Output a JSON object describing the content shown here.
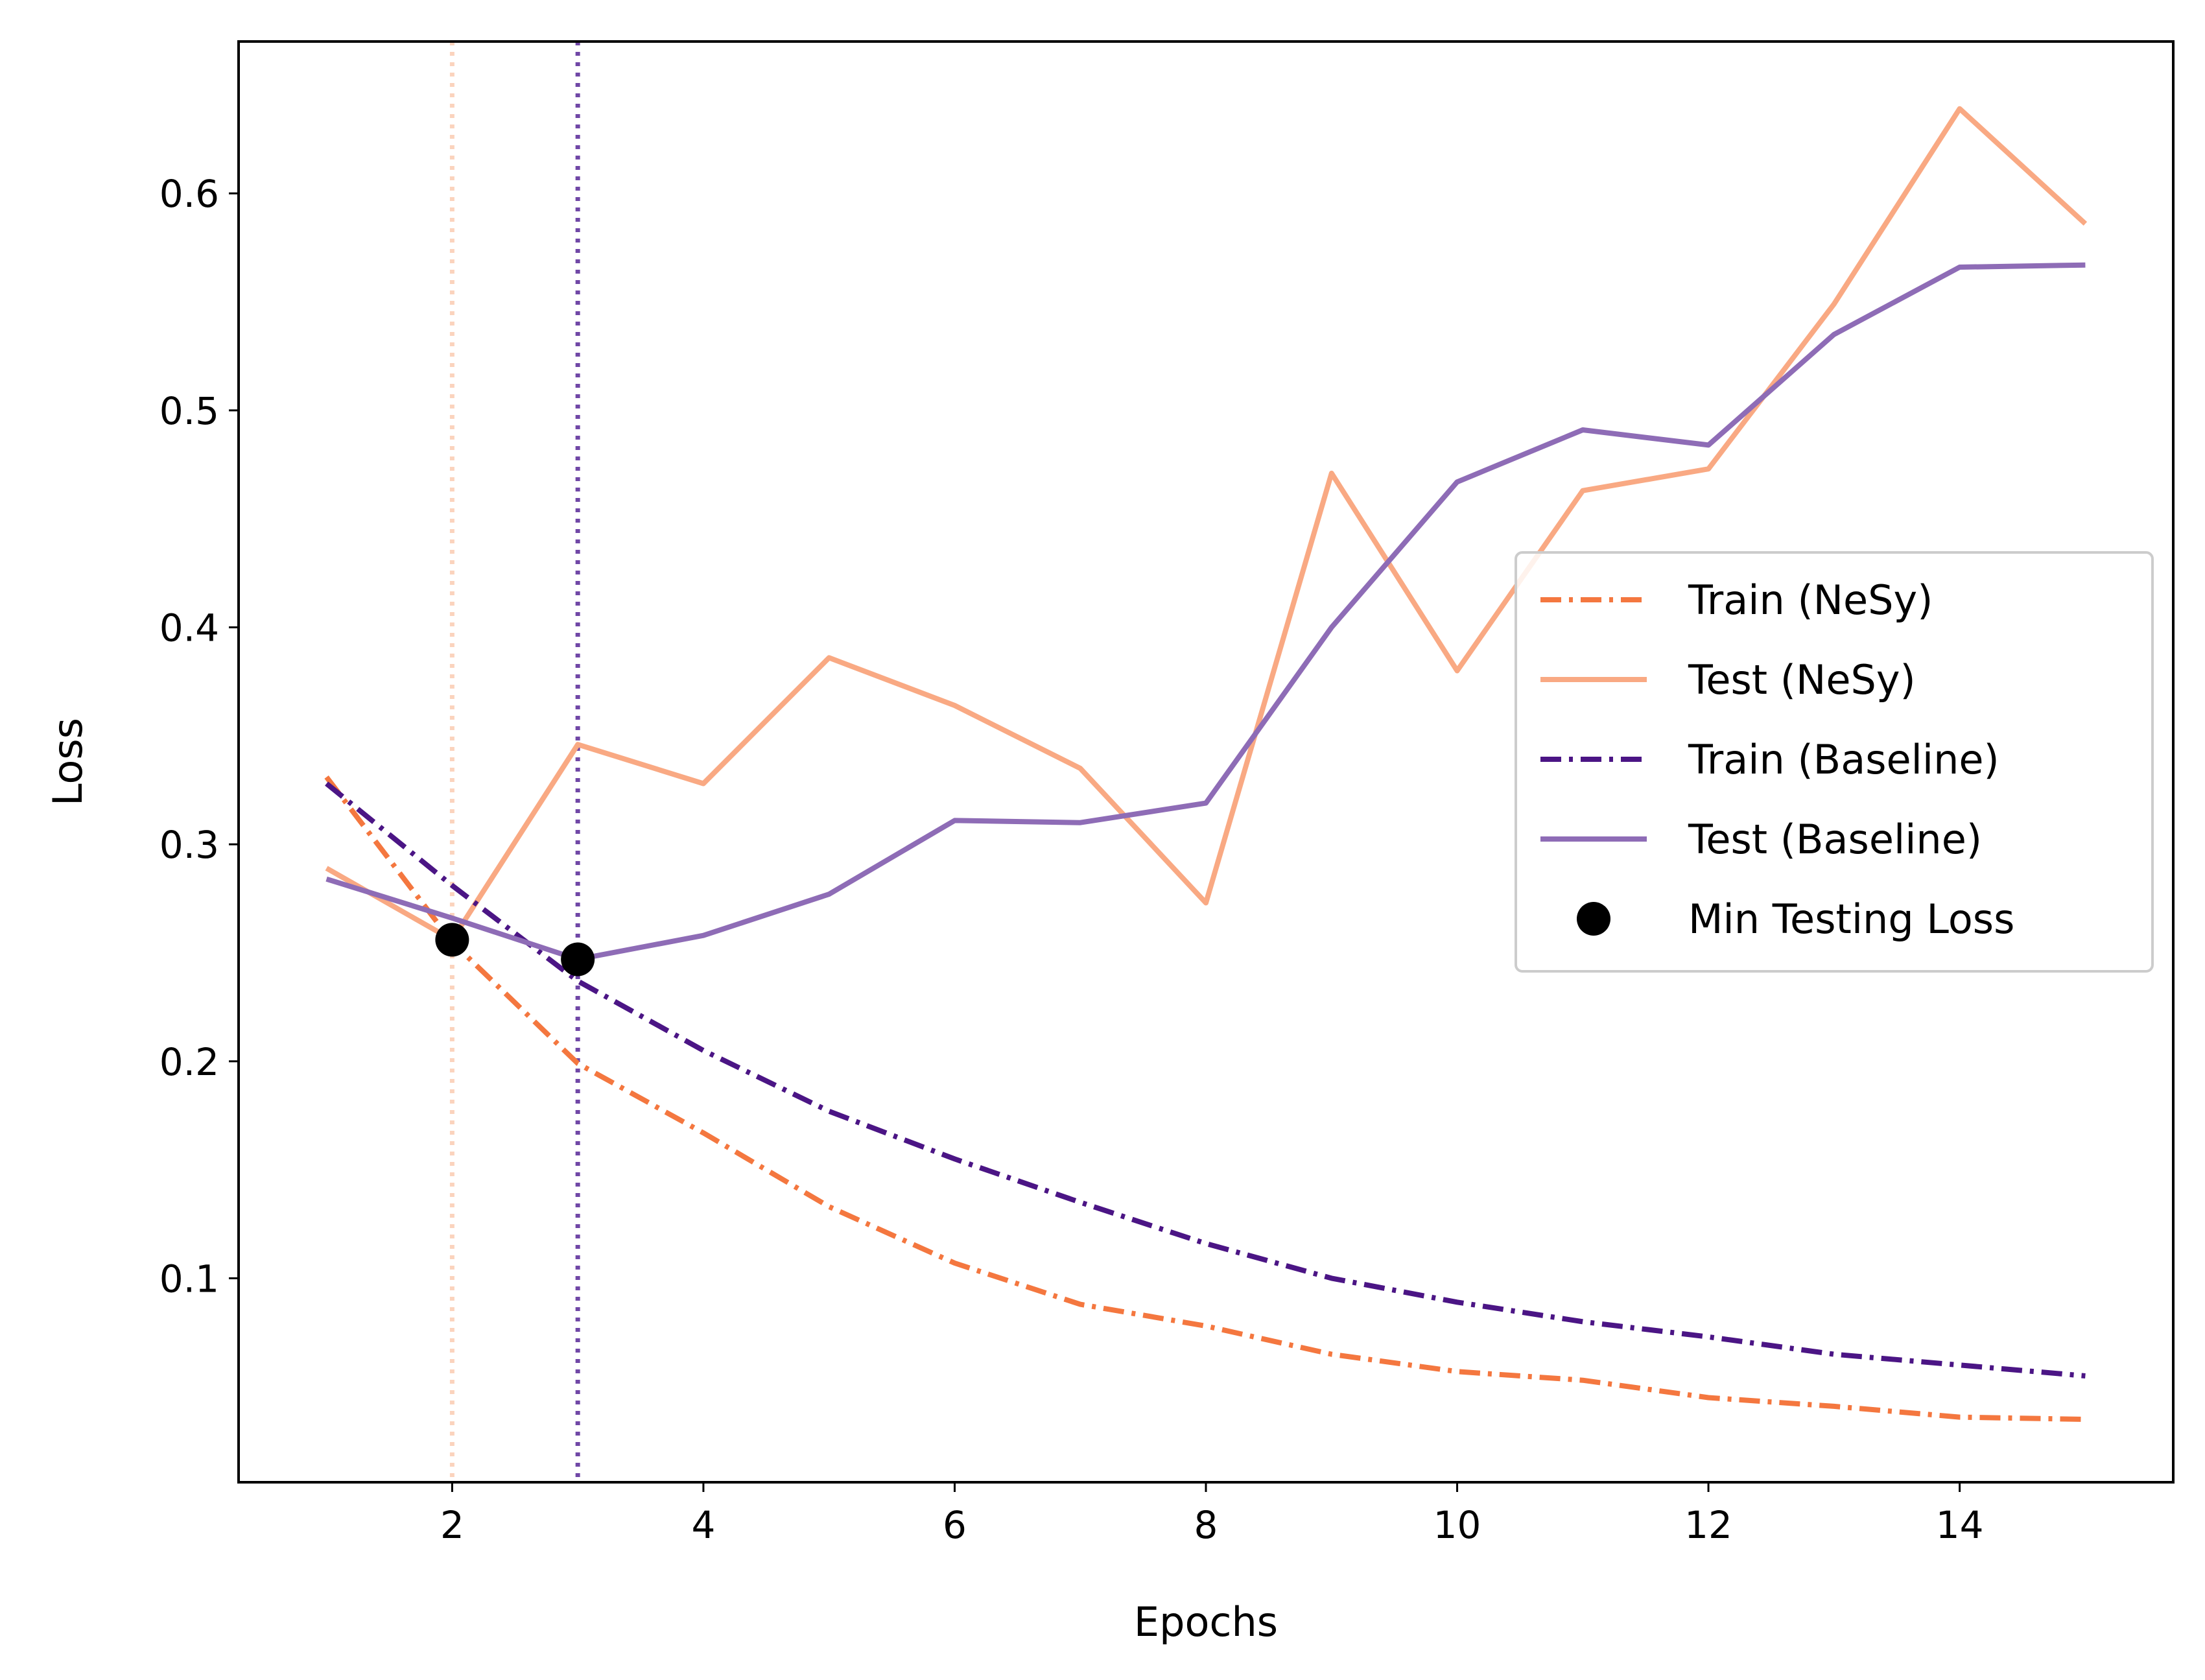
{
  "chart_data": {
    "type": "line",
    "xlabel": "Epochs",
    "ylabel": "Loss",
    "xlim": [
      0.3,
      15.7
    ],
    "ylim": [
      0.006,
      0.67
    ],
    "xticks": [
      2,
      4,
      6,
      8,
      10,
      12,
      14
    ],
    "yticks": [
      0.1,
      0.2,
      0.3,
      0.4,
      0.5,
      0.6
    ],
    "grid": false,
    "legend_position": "center-right",
    "x": [
      1,
      2,
      3,
      4,
      5,
      6,
      7,
      8,
      9,
      10,
      11,
      12,
      13,
      14,
      15
    ],
    "series": [
      {
        "name": "Train (NeSy)",
        "style": "dashdot",
        "color": "#f4773f",
        "values": [
          0.331,
          0.255,
          0.199,
          0.167,
          0.133,
          0.107,
          0.088,
          0.078,
          0.065,
          0.057,
          0.053,
          0.045,
          0.041,
          0.036,
          0.035
        ]
      },
      {
        "name": "Test (NeSy)",
        "style": "solid",
        "color": "#f9a983",
        "values": [
          0.289,
          0.256,
          0.346,
          0.328,
          0.386,
          0.364,
          0.335,
          0.273,
          0.471,
          0.38,
          0.463,
          0.473,
          0.549,
          0.639,
          0.586
        ]
      },
      {
        "name": "Train (Baseline)",
        "style": "dashdot",
        "color": "#4b1585",
        "values": [
          0.328,
          0.281,
          0.237,
          0.205,
          0.177,
          0.155,
          0.135,
          0.116,
          0.1,
          0.089,
          0.08,
          0.073,
          0.065,
          0.06,
          0.055
        ]
      },
      {
        "name": "Test (Baseline)",
        "style": "solid",
        "color": "#8e6cb6",
        "values": [
          0.284,
          0.266,
          0.247,
          0.258,
          0.277,
          0.311,
          0.31,
          0.319,
          0.4,
          0.467,
          0.491,
          0.484,
          0.535,
          0.566,
          0.567
        ]
      }
    ],
    "min_testing_loss": {
      "name": "Min Testing Loss",
      "color": "#000000",
      "points": [
        {
          "x": 2,
          "y": 0.256
        },
        {
          "x": 3,
          "y": 0.247
        }
      ]
    },
    "vertical_lines": [
      {
        "x": 2,
        "color": "#fbd3bd",
        "style": "dotted"
      },
      {
        "x": 3,
        "color": "#7047a6",
        "style": "dotted"
      }
    ]
  }
}
